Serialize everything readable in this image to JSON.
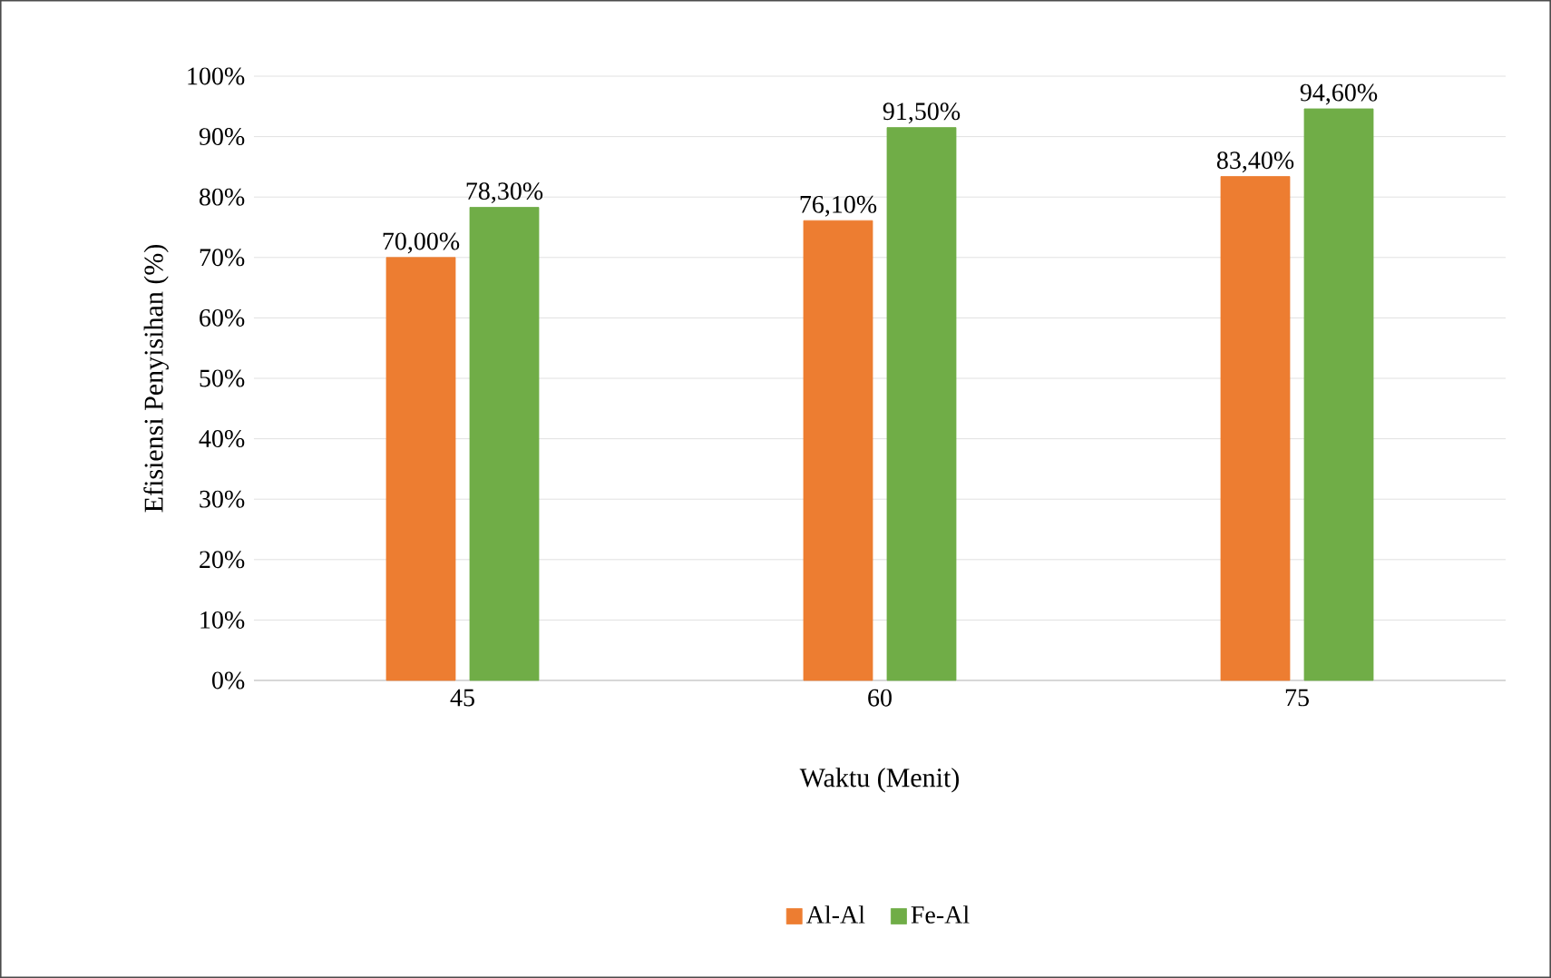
{
  "chart_data": {
    "type": "bar",
    "xlabel": "Waktu (Menit)",
    "ylabel": "Efisiensi Penyisihan (%)",
    "categories": [
      "45",
      "60",
      "75"
    ],
    "series": [
      {
        "name": "Al-Al",
        "color": "#ed7d31",
        "values": [
          70.0,
          76.1,
          83.4
        ],
        "value_labels": [
          "70,00%",
          "76,10%",
          "83,40%"
        ]
      },
      {
        "name": "Fe-Al",
        "color": "#70ad47",
        "values": [
          78.3,
          91.5,
          94.6
        ],
        "value_labels": [
          "78,30%",
          "91,50%",
          "94,60%"
        ]
      }
    ],
    "ylim": [
      0,
      100
    ],
    "yticks": [
      {
        "value": 0,
        "label": "0%"
      },
      {
        "value": 10,
        "label": "10%"
      },
      {
        "value": 20,
        "label": "20%"
      },
      {
        "value": 30,
        "label": "30%"
      },
      {
        "value": 40,
        "label": "40%"
      },
      {
        "value": 50,
        "label": "50%"
      },
      {
        "value": 60,
        "label": "60%"
      },
      {
        "value": 70,
        "label": "70%"
      },
      {
        "value": 80,
        "label": "80%"
      },
      {
        "value": 90,
        "label": "90%"
      },
      {
        "value": 100,
        "label": "100%"
      }
    ],
    "grid": "y",
    "legend": "bottom"
  }
}
